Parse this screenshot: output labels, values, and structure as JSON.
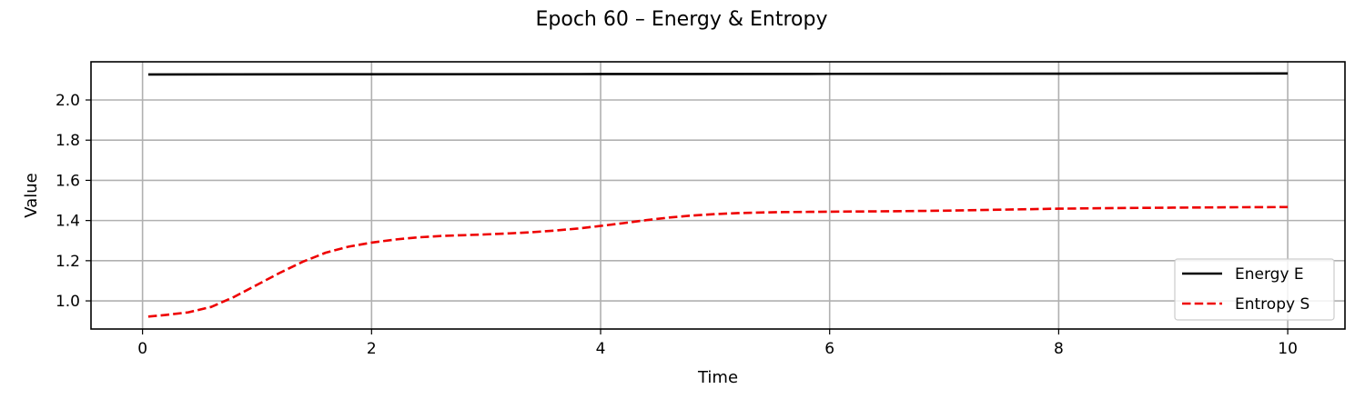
{
  "chart_data": {
    "type": "line",
    "title": "Epoch 60 – Energy & Entropy",
    "xlabel": "Time",
    "ylabel": "Value",
    "xlim": [
      -0.45,
      10.5
    ],
    "ylim": [
      0.86,
      2.19
    ],
    "xticks": [
      0,
      2,
      4,
      6,
      8,
      10
    ],
    "yticks": [
      1.0,
      1.2,
      1.4,
      1.6,
      1.8,
      2.0
    ],
    "xtick_labels": [
      "0",
      "2",
      "4",
      "6",
      "8",
      "10"
    ],
    "ytick_labels": [
      "1.0",
      "1.2",
      "1.4",
      "1.6",
      "1.8",
      "2.0"
    ],
    "grid": true,
    "legend": "lower-right",
    "series": [
      {
        "name": "Energy E",
        "color": "#000000",
        "dash": "solid",
        "x": [
          0.05,
          2.0,
          4.0,
          6.0,
          8.0,
          10.0
        ],
        "y": [
          2.127,
          2.128,
          2.129,
          2.13,
          2.131,
          2.132
        ]
      },
      {
        "name": "Entropy S",
        "color": "#ee0000",
        "dash": "dashed",
        "x": [
          0.05,
          0.2,
          0.4,
          0.6,
          0.8,
          1.0,
          1.2,
          1.4,
          1.6,
          1.8,
          2.0,
          2.2,
          2.4,
          2.6,
          2.8,
          3.0,
          3.2,
          3.4,
          3.6,
          3.8,
          4.0,
          4.2,
          4.4,
          4.6,
          4.8,
          5.0,
          5.2,
          5.4,
          5.6,
          5.8,
          6.0,
          6.5,
          7.0,
          7.5,
          8.0,
          8.5,
          9.0,
          9.5,
          10.0
        ],
        "y": [
          0.922,
          0.93,
          0.943,
          0.97,
          1.02,
          1.08,
          1.14,
          1.195,
          1.24,
          1.27,
          1.29,
          1.305,
          1.316,
          1.323,
          1.327,
          1.331,
          1.336,
          1.342,
          1.35,
          1.36,
          1.373,
          1.387,
          1.402,
          1.415,
          1.425,
          1.432,
          1.437,
          1.44,
          1.442,
          1.443,
          1.444,
          1.446,
          1.449,
          1.454,
          1.459,
          1.462,
          1.464,
          1.466,
          1.467
        ]
      }
    ]
  }
}
